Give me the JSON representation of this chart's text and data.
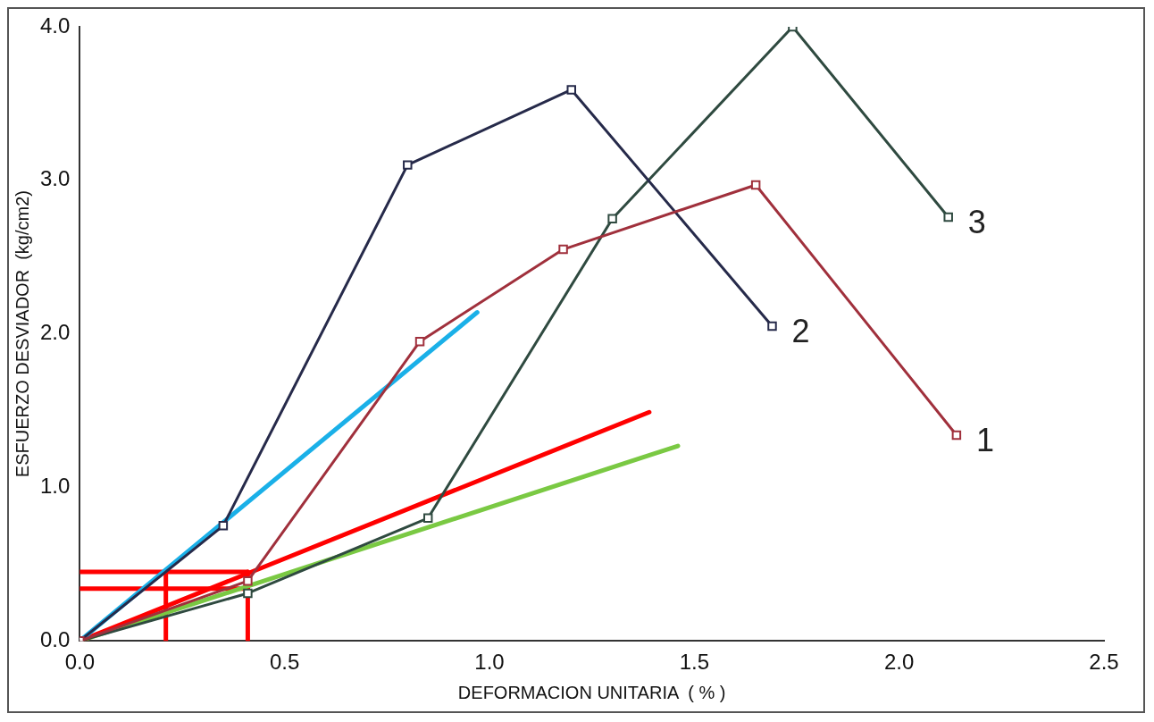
{
  "chart_data": {
    "type": "line",
    "xlabel": "DEFORMACION UNITARIA  ( % )",
    "ylabel": "ESFUERZO DESVIADOR  (kg/cm2)",
    "xlim": [
      0,
      2.5
    ],
    "ylim": [
      0,
      4
    ],
    "xticks": [
      {
        "value": 0,
        "label": "0.0"
      },
      {
        "value": 0.5,
        "label": "0.5"
      },
      {
        "value": 1,
        "label": "1.0"
      },
      {
        "value": 1.5,
        "label": "1.5"
      },
      {
        "value": 2,
        "label": "2.0"
      },
      {
        "value": 2.5,
        "label": "2.5"
      }
    ],
    "yticks": [
      {
        "value": 0,
        "label": "0.0"
      },
      {
        "value": 1,
        "label": "1.0"
      },
      {
        "value": 2,
        "label": "2.0"
      },
      {
        "value": 3,
        "label": "3.0"
      },
      {
        "value": 4,
        "label": "4.0"
      }
    ],
    "grid": false,
    "marker": "square",
    "series": [
      {
        "name": "1",
        "color": "#a0303c",
        "x": [
          0,
          0.41,
          0.83,
          1.18,
          1.65,
          2.14
        ],
        "values": [
          0,
          0.39,
          1.95,
          2.55,
          2.97,
          1.34
        ]
      },
      {
        "name": "2",
        "color": "#262a4a",
        "x": [
          0,
          0.35,
          0.8,
          1.2,
          1.69
        ],
        "values": [
          0,
          0.75,
          3.1,
          3.59,
          2.05
        ]
      },
      {
        "name": "3",
        "color": "#2f4a40",
        "x": [
          0,
          0.41,
          0.85,
          1.3,
          1.74,
          2.12
        ],
        "values": [
          0,
          0.31,
          0.8,
          2.75,
          4.0,
          2.76
        ]
      },
      {
        "color": "#1ab0e8",
        "marker": "none",
        "x": [
          0,
          0.97
        ],
        "values": [
          0,
          2.14
        ]
      },
      {
        "color": "#ff0000",
        "marker": "none",
        "x": [
          0,
          1.39
        ],
        "values": [
          0,
          1.49
        ]
      },
      {
        "color": "#7ac943",
        "marker": "none",
        "x": [
          0,
          1.46
        ],
        "values": [
          0,
          1.27
        ]
      },
      {
        "color": "#ff0000",
        "marker": "none",
        "x": [
          0,
          0.41
        ],
        "values": [
          0.45,
          0.45
        ]
      },
      {
        "color": "#ff0000",
        "marker": "none",
        "x": [
          0,
          0.41
        ],
        "values": [
          0.34,
          0.34
        ]
      },
      {
        "color": "#ff0000",
        "marker": "none",
        "x": [
          0.21,
          0.21
        ],
        "values": [
          0,
          0.45
        ]
      },
      {
        "color": "#ff0000",
        "marker": "none",
        "x": [
          0.41,
          0.41
        ],
        "values": [
          0,
          0.45
        ]
      }
    ]
  }
}
